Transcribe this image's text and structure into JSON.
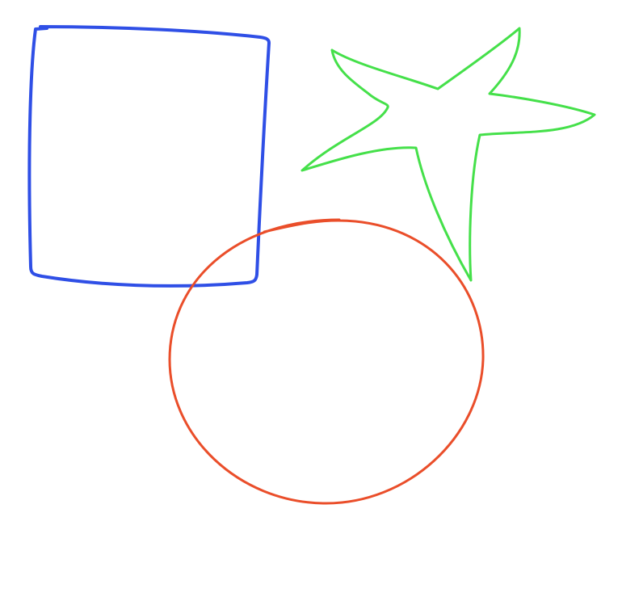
{
  "canvas": {
    "background": "#ffffff"
  },
  "shapes": [
    {
      "kind": "rectangle",
      "style": "hand-drawn outline",
      "stroke_color": "#2f4fe6"
    },
    {
      "kind": "star",
      "points": 5,
      "style": "hand-drawn outline",
      "stroke_color": "#45e04a"
    },
    {
      "kind": "circle",
      "style": "hand-drawn outline",
      "stroke_color": "#ea4e2a"
    }
  ]
}
